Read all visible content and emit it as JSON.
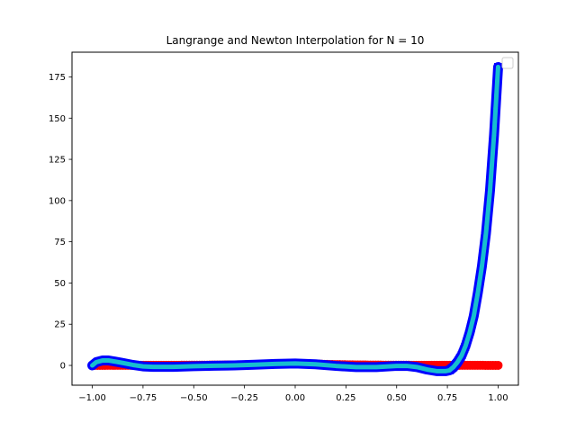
{
  "chart_data": {
    "type": "line",
    "title": "Langrange and Newton Interpolation for N = 10",
    "xlabel": "",
    "ylabel": "",
    "xlim": [
      -1.1,
      1.1
    ],
    "ylim": [
      -12.0,
      190.0
    ],
    "x_ticks": [
      -1.0,
      -0.75,
      -0.5,
      -0.25,
      0.0,
      0.25,
      0.5,
      0.75,
      1.0
    ],
    "x_tick_labels": [
      "−1.00",
      "−0.75",
      "−0.50",
      "−0.25",
      "0.00",
      "0.25",
      "0.50",
      "0.75",
      "1.00"
    ],
    "y_ticks": [
      0,
      25,
      50,
      75,
      100,
      125,
      150,
      175
    ],
    "y_tick_labels": [
      "0",
      "25",
      "50",
      "75",
      "100",
      "125",
      "150",
      "175"
    ],
    "grid": false,
    "legend": "top-right",
    "series": [
      {
        "style": "red-markers",
        "color": "#ff0000",
        "x": [
          -1.0,
          -0.95,
          -0.9,
          -0.85,
          -0.8,
          -0.75,
          -0.7,
          -0.65,
          -0.6,
          -0.55,
          -0.5,
          -0.45,
          -0.4,
          -0.35,
          -0.3,
          -0.25,
          -0.2,
          -0.15,
          -0.1,
          -0.05,
          0.0,
          0.05,
          0.1,
          0.15,
          0.2,
          0.25,
          0.3,
          0.35,
          0.4,
          0.45,
          0.5,
          0.55,
          0.6,
          0.65,
          0.7,
          0.75,
          0.8,
          0.85,
          0.9,
          0.95,
          1.0
        ],
        "y": [
          0.04,
          0.04,
          0.05,
          0.05,
          0.06,
          0.07,
          0.08,
          0.09,
          0.1,
          0.12,
          0.14,
          0.17,
          0.2,
          0.25,
          0.31,
          0.39,
          0.5,
          0.64,
          0.8,
          0.94,
          1.0,
          0.94,
          0.8,
          0.64,
          0.5,
          0.39,
          0.31,
          0.25,
          0.2,
          0.17,
          0.14,
          0.12,
          0.1,
          0.09,
          0.08,
          0.07,
          0.06,
          0.05,
          0.05,
          0.04,
          0.04
        ]
      },
      {
        "style": "blue-squares",
        "color": "#0000ff",
        "x": [
          -1.0,
          -0.98,
          -0.95,
          -0.92,
          -0.9,
          -0.85,
          -0.8,
          -0.75,
          -0.7,
          -0.6,
          -0.5,
          -0.4,
          -0.3,
          -0.2,
          -0.1,
          0.0,
          0.1,
          0.2,
          0.3,
          0.4,
          0.5,
          0.55,
          0.6,
          0.65,
          0.7,
          0.74,
          0.76,
          0.78,
          0.8,
          0.82,
          0.84,
          0.86,
          0.88,
          0.9,
          0.92,
          0.94,
          0.96,
          0.98,
          1.0
        ],
        "y": [
          0.0,
          2.0,
          3.0,
          3.0,
          2.6,
          1.5,
          0.3,
          -0.6,
          -0.9,
          -0.9,
          -0.5,
          -0.2,
          0.0,
          0.4,
          0.9,
          1.2,
          0.7,
          -0.3,
          -1.0,
          -1.0,
          -0.3,
          -0.3,
          -1.0,
          -2.5,
          -3.5,
          -3.5,
          -3.0,
          -1.0,
          2.0,
          6.0,
          12.0,
          20.0,
          30.0,
          44.0,
          60.0,
          80.0,
          106.0,
          140.0,
          181.0
        ]
      },
      {
        "style": "cyan-dots",
        "color": "#17becf",
        "x": [
          -1.0,
          -0.98,
          -0.95,
          -0.92,
          -0.9,
          -0.85,
          -0.8,
          -0.75,
          -0.7,
          -0.6,
          -0.5,
          -0.4,
          -0.3,
          -0.2,
          -0.1,
          0.0,
          0.1,
          0.2,
          0.3,
          0.4,
          0.5,
          0.55,
          0.6,
          0.65,
          0.7,
          0.74,
          0.76,
          0.78,
          0.8,
          0.82,
          0.84,
          0.86,
          0.88,
          0.9,
          0.92,
          0.94,
          0.96,
          0.98,
          1.0
        ],
        "y": [
          0.0,
          2.0,
          3.0,
          3.0,
          2.6,
          1.5,
          0.3,
          -0.6,
          -0.9,
          -0.9,
          -0.5,
          -0.2,
          0.0,
          0.4,
          0.9,
          1.2,
          0.7,
          -0.3,
          -1.0,
          -1.0,
          -0.3,
          -0.3,
          -1.0,
          -2.5,
          -3.5,
          -3.5,
          -3.0,
          -1.0,
          2.0,
          6.0,
          12.0,
          20.0,
          30.0,
          44.0,
          60.0,
          80.0,
          106.0,
          140.0,
          181.0
        ]
      }
    ]
  }
}
